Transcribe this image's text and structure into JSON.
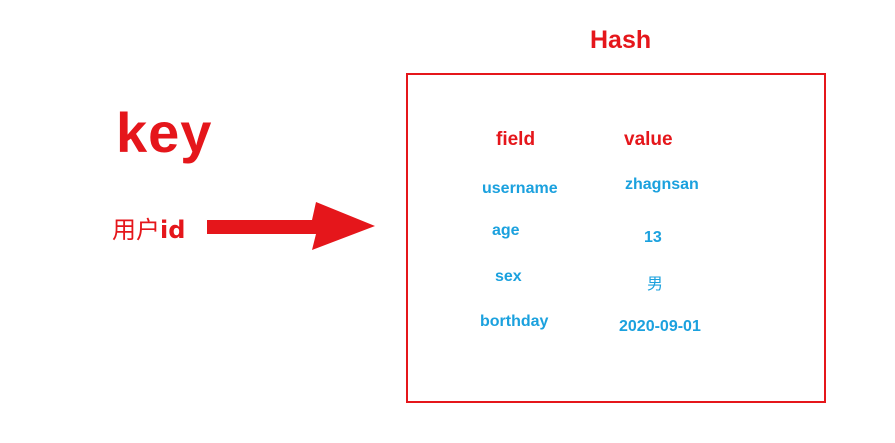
{
  "title": "Hash",
  "key_label": "key",
  "key_value": {
    "prefix": "用户",
    "suffix": "id"
  },
  "columns": {
    "field": "field",
    "value": "value"
  },
  "rows": [
    {
      "field": "username",
      "value": "zhagnsan"
    },
    {
      "field": "age",
      "value": "13"
    },
    {
      "field": "sex",
      "value": "男"
    },
    {
      "field": "borthday",
      "value": "2020-09-01"
    }
  ],
  "colors": {
    "accent_red": "#e5161b",
    "cell_blue": "#1ba1de"
  }
}
